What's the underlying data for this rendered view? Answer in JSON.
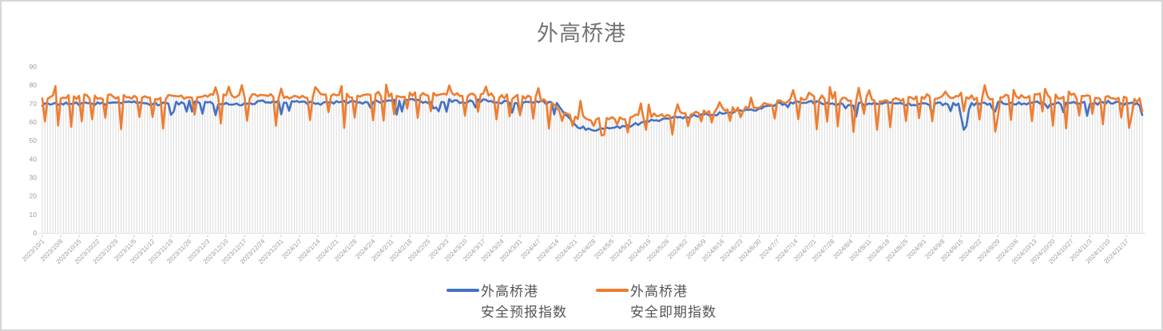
{
  "title": "外高桥港",
  "colors": {
    "forecast": "#4472C4",
    "spot": "#ED7D31",
    "dropline": "#DBDBDB",
    "axis_line": "#E3E3E3",
    "tick_mark": "#C9C9C9",
    "tick_text": "#9B9B9B",
    "title_text": "#747474",
    "legend_text": "#555555",
    "border": "#D6D6D6"
  },
  "legend": {
    "items": [
      {
        "key": "forecast",
        "label_line1": "外高桥港",
        "label_line2": "安全预报指数",
        "color": "#4472C4"
      },
      {
        "key": "spot",
        "label_line1": "外高桥港",
        "label_line2": "安全即期指数",
        "color": "#ED7D31"
      }
    ]
  },
  "chart_data": {
    "type": "line",
    "title": "外高桥港",
    "xlabel": "",
    "ylabel": "",
    "ylim": [
      0,
      90
    ],
    "y_ticks": [
      0,
      10,
      20,
      30,
      40,
      50,
      60,
      70,
      80,
      90
    ],
    "grid": "daily vertical drop-lines from category axis up to the series values, no horizontal gridlines",
    "legend_position": "bottom-center",
    "x_unit": "day",
    "points_per_week": 7,
    "x_tick_labels": [
      "2023/10/1",
      "2023/10/8",
      "2023/10/15",
      "2023/10/22",
      "2023/10/29",
      "2023/11/5",
      "2023/11/12",
      "2023/11/19",
      "2023/11/26",
      "2023/12/3",
      "2023/12/10",
      "2023/12/17",
      "2023/12/24",
      "2023/12/31",
      "2024/1/7",
      "2024/1/14",
      "2024/1/21",
      "2024/1/28",
      "2024/2/4",
      "2024/2/11",
      "2024/2/18",
      "2024/2/25",
      "2024/3/3",
      "2024/3/10",
      "2024/3/17",
      "2024/3/24",
      "2024/3/31",
      "2024/4/7",
      "2024/4/14",
      "2024/4/21",
      "2024/4/28",
      "2024/5/5",
      "2024/5/12",
      "2024/5/19",
      "2024/5/26",
      "2024/6/2",
      "2024/6/9",
      "2024/6/16",
      "2024/6/23",
      "2024/6/30",
      "2024/7/7",
      "2024/7/14",
      "2024/7/21",
      "2024/7/28",
      "2024/8/4",
      "2024/8/11",
      "2024/8/18",
      "2024/8/25",
      "2024/9/1",
      "2024/9/8",
      "2024/9/15",
      "2024/9/22",
      "2024/9/29",
      "2024/10/6",
      "2024/10/13",
      "2024/10/20",
      "2024/10/27",
      "2024/11/3",
      "2024/11/10",
      "2024/11/17"
    ],
    "series": [
      {
        "name": "外高桥港安全预报指数",
        "color": "#4472C4",
        "weekly_values": [
          70,
          70,
          70,
          70,
          70,
          71,
          70,
          70,
          71,
          71,
          70,
          70,
          71,
          71,
          71,
          70,
          71,
          71,
          71,
          72,
          72,
          71,
          72,
          71,
          72,
          71,
          71,
          71,
          70,
          58,
          56,
          57,
          58,
          61,
          62,
          63,
          64,
          65,
          66,
          67,
          70,
          71,
          71,
          70,
          70,
          70,
          71,
          70,
          70,
          70,
          70,
          70,
          71,
          70,
          71,
          70,
          71,
          70,
          71,
          70
        ]
      },
      {
        "name": "外高桥港安全即期指数",
        "color": "#ED7D31",
        "weekly_values": [
          73,
          74,
          74,
          74,
          74,
          74,
          73,
          74,
          74,
          74,
          74,
          74,
          75,
          74,
          74,
          74,
          75,
          74,
          74,
          75,
          75,
          75,
          76,
          75,
          75,
          74,
          74,
          73,
          68,
          63,
          62,
          63,
          63,
          64,
          63,
          65,
          66,
          67,
          67,
          69,
          71,
          73,
          74,
          73,
          72,
          73,
          72,
          73,
          74,
          74,
          74,
          73,
          74,
          74,
          75,
          74,
          74,
          74,
          74,
          73
        ]
      }
    ],
    "notes": "Spot index (orange) rides ~74 with sharp roughly-weekly dips to 57-65; forecast index (blue) is smoother ~70. Both sag to mid-50s/low-60s between 2024/4/14 and 2024/7/7. Blue one-off deep dip to ~56 near 2024/9/16; orange deep dips near 2024/9/28 (~55) and 2024/11/18 (~57).",
    "render": {
      "seed": 9,
      "noise_forecast": 1.8,
      "noise_spot": 2.6,
      "f_dip_prob": 0.1,
      "s_dip_prob": 0.3,
      "s_up_prob": 0.08,
      "dip_cooldown": 4,
      "overrides": [
        [
          0,
          "F",
          69
        ],
        [
          0,
          "S",
          73
        ],
        [
          155,
          "S",
          80
        ],
        [
          156,
          "S",
          76
        ],
        [
          213,
          "S",
          53
        ],
        [
          350,
          "F",
          63
        ],
        [
          351,
          "F",
          56
        ],
        [
          352,
          "F",
          58
        ],
        [
          353,
          "F",
          67
        ],
        [
          363,
          "S",
          55
        ],
        [
          364,
          "S",
          63
        ],
        [
          414,
          "S",
          57
        ],
        [
          415,
          "S",
          64
        ],
        [
          417,
          "S",
          71
        ],
        [
          418,
          "F",
          69
        ],
        [
          419,
          "F",
          64
        ],
        [
          419,
          "S",
          66
        ]
      ]
    }
  }
}
